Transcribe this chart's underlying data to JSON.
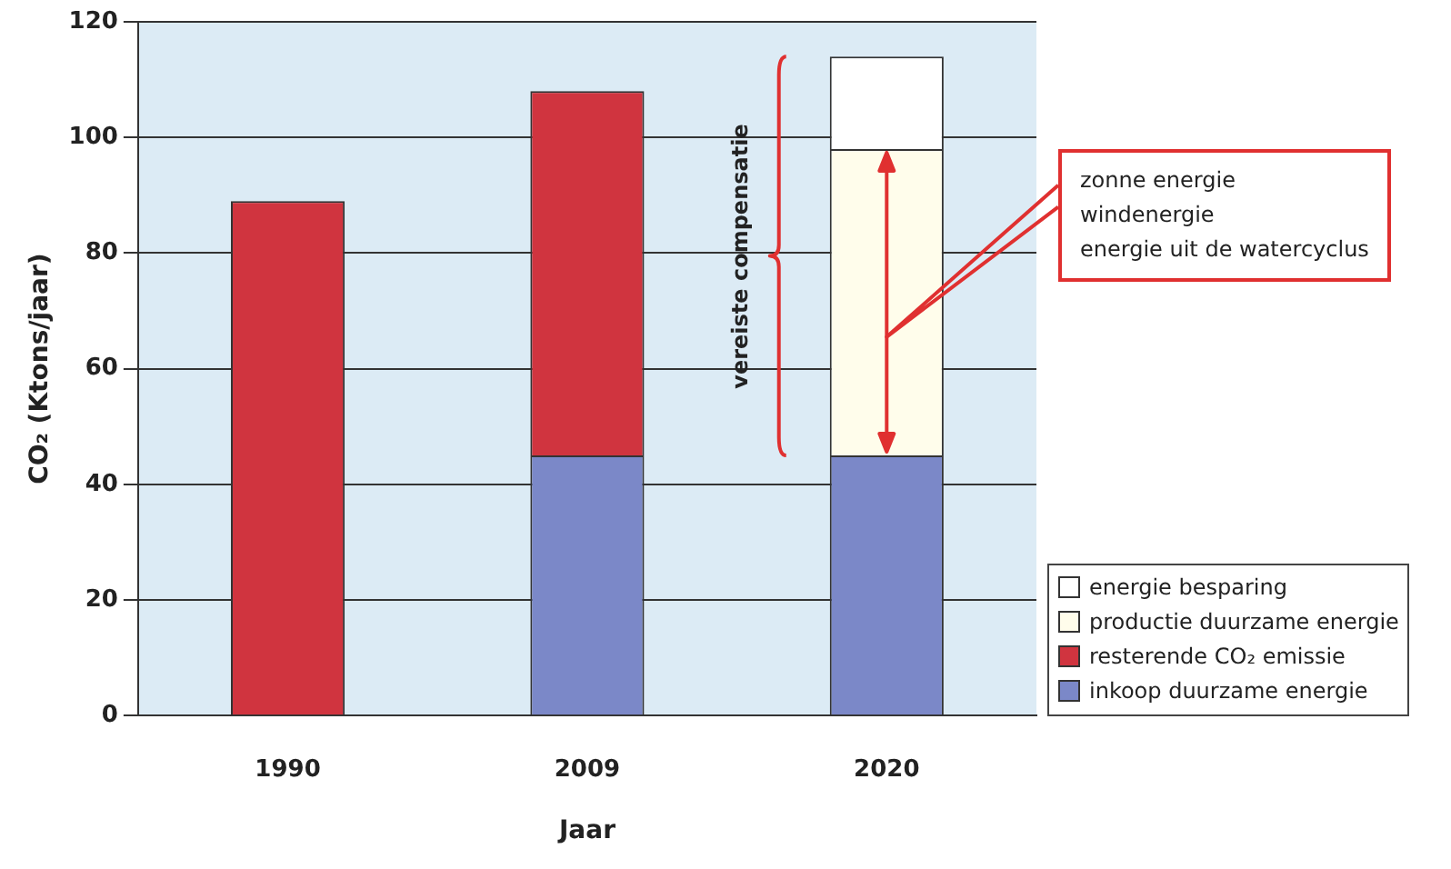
{
  "chart_data": {
    "type": "bar",
    "stacked": true,
    "xlabel": "Jaar",
    "ylabel": "CO₂ (Ktons/jaar)",
    "categories": [
      "1990",
      "2009",
      "2020"
    ],
    "series": [
      {
        "name": "inkoop duurzame energie",
        "color": "#7b88c8",
        "values": [
          null,
          45,
          45
        ]
      },
      {
        "name": "resterende CO₂ emissie",
        "color": "#d0343f",
        "values": [
          89,
          63,
          null
        ]
      },
      {
        "name": "productie duurzame energie",
        "color": "#fffdeb",
        "values": [
          null,
          null,
          53
        ]
      },
      {
        "name": "energie besparing",
        "color": "#ffffff",
        "values": [
          null,
          null,
          16
        ]
      }
    ],
    "ylim": [
      0,
      120
    ],
    "yticks": [
      0,
      20,
      40,
      60,
      80,
      100,
      120
    ],
    "grid": "y",
    "legend": "bottom right",
    "annotations": [
      "vereiste compensatie",
      "zonne energie\nwindenergie\nenergie uit de watercyclus"
    ]
  }
}
